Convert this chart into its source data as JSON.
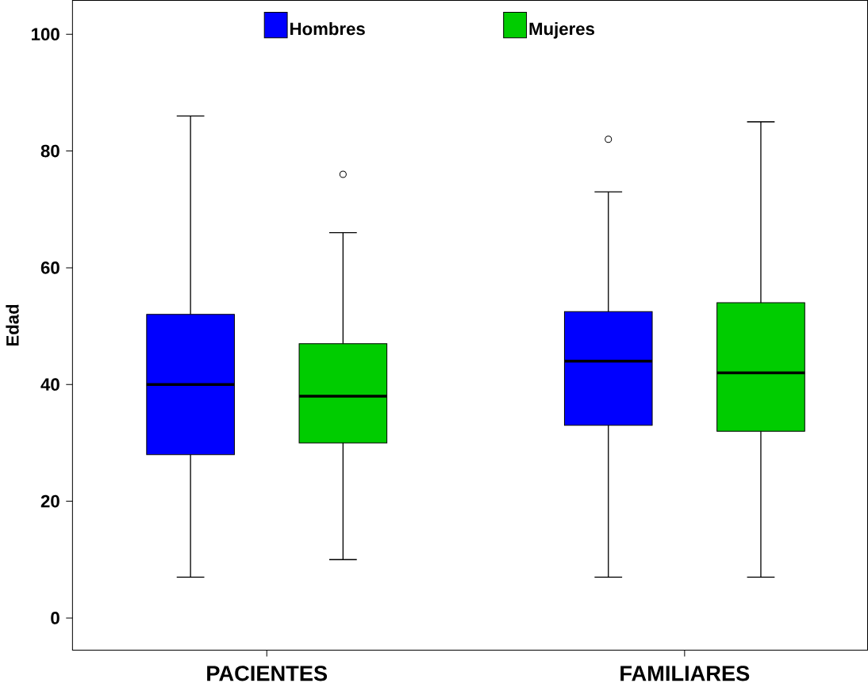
{
  "chart_data": {
    "type": "box",
    "ylabel": "Edad",
    "categories": [
      "PACIENTES",
      "FAMILIARES"
    ],
    "series": [
      {
        "name": "Hombres",
        "color": "#0000ff",
        "boxes": [
          {
            "low": 7,
            "q1": 28,
            "median": 40,
            "q3": 52,
            "high": 86
          },
          {
            "low": 7,
            "q1": 33,
            "median": 44,
            "q3": 52.5,
            "high": 73,
            "outliers": [
              82
            ]
          }
        ]
      },
      {
        "name": "Mujeres",
        "color": "#00cc00",
        "boxes": [
          {
            "low": 10,
            "q1": 30,
            "median": 38,
            "q3": 47,
            "high": 66,
            "outliers": [
              76
            ]
          },
          {
            "low": 7,
            "q1": 32,
            "median": 42,
            "q3": 54,
            "high": 85
          }
        ]
      }
    ],
    "ylim": [
      -5.5,
      105.8
    ],
    "yticks": [
      0,
      20,
      40,
      60,
      80,
      100
    ],
    "legend": "top",
    "marker": "circle"
  }
}
